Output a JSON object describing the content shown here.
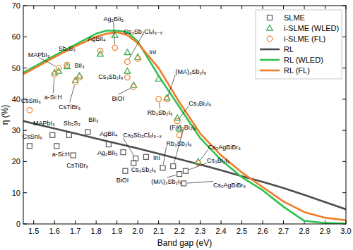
{
  "chart_data": {
    "type": "scatter",
    "x_label": "Band gap (eV)",
    "y_label": "η (%)",
    "xlim": [
      1.45,
      3.0
    ],
    "xticks": [
      1.5,
      1.6,
      1.7,
      1.8,
      1.9,
      {
        "value": 2,
        "label": "2.0"
      },
      2.1,
      2.2,
      2.3,
      2.4,
      2.5,
      2.6,
      2.7,
      2.8,
      2.9,
      {
        "value": 3,
        "label": "3.0"
      }
    ],
    "ylim": [
      0,
      70
    ],
    "yticks": [
      0,
      10,
      20,
      30,
      40,
      50,
      60,
      70
    ],
    "grid": false,
    "legend": "upper right",
    "series": [
      {
        "name": "SLME",
        "type": "scatter",
        "marker": "square",
        "color": "#595959",
        "x": [
          1.48,
          1.59,
          1.61,
          1.67,
          1.69,
          1.76,
          1.86,
          1.93,
          1.99,
          2.04,
          1.98,
          1.94,
          2.12,
          2.17,
          2.2,
          2.23,
          2.22
        ],
        "values": [
          25,
          28.5,
          25,
          28.5,
          22,
          29.5,
          25.5,
          23,
          21,
          21.5,
          19.5,
          17,
          18,
          18.5,
          16,
          17,
          13
        ],
        "labels": [
          "CsSnI₆",
          "MAPbI₃",
          "a-Si:H",
          "Sb₂S₃",
          "CsTiBr₆",
          "BiI₃",
          "AgBiI₄",
          "Ag₂BiI₅",
          "Cs₃Sb₂ClₓI₉₋ₓ",
          "InI",
          "Cs₃Sb₂I₉",
          "BiOI",
          "Rb₃Sb₂I₉",
          "(FA)₃Bi₂I₉",
          "(MA)₃Sb₂I₉",
          "Cs₃Bi₂I₉",
          "Cs₂AgBiBr₆"
        ]
      },
      {
        "name": "i-SLME (WLED)",
        "type": "scatter",
        "marker": "triangle",
        "color": "#2ca84a",
        "x": [
          1.6,
          1.62,
          1.66,
          1.7,
          1.72,
          1.82,
          1.89,
          1.95,
          1.95,
          2.0,
          1.98,
          2.1,
          2.14,
          2.19,
          2.2,
          2.29
        ],
        "values": [
          48.5,
          49,
          50.5,
          46,
          47.5,
          54.5,
          60.5,
          55,
          49,
          53.5,
          44.5,
          46.5,
          40.5,
          34,
          30.5,
          20
        ]
      },
      {
        "name": "i-SLME (FL)",
        "type": "scatter",
        "marker": "circle",
        "color": "#f07c28",
        "x": [
          1.48,
          1.6,
          1.62,
          1.66,
          1.7,
          1.72,
          1.82,
          1.89,
          1.95,
          1.95,
          2.0,
          1.98,
          2.1,
          2.14,
          2.19,
          2.2,
          2.29
        ],
        "values": [
          36.5,
          48,
          50,
          51,
          45.5,
          47,
          55.5,
          56.5,
          52,
          47,
          53,
          44,
          40,
          40,
          33,
          28.5,
          19.5
        ],
        "labels": [
          "CsSnI₆",
          "a-Si:H",
          "MAPbI₃",
          "Sb₂S₃",
          "CsTiBr₆",
          "BiI₃",
          "AgBiI₄",
          "Ag₂BiI₅",
          "Cs₃Sb₂ClₓI₉₋ₓ",
          "Cs₃Sb₂I₉",
          "InI",
          "BiOI",
          "Rb₃Sb₂I₉",
          "(MA)₃Sb₂I₉",
          "Cs₃Bi₂I₉",
          null,
          "Cs₂AgBiBr₆"
        ]
      },
      {
        "name": "RL",
        "type": "line",
        "line_style": "solid",
        "color": "#4d4d4d",
        "x": [
          1.45,
          1.5,
          1.6,
          1.7,
          1.8,
          1.9,
          2.0,
          2.1,
          2.2,
          2.3,
          2.4,
          2.5,
          2.6,
          2.7,
          2.8,
          2.9,
          3.0
        ],
        "values": [
          33,
          32.2,
          30.6,
          29,
          27.4,
          25.8,
          24.2,
          22.5,
          20.8,
          19,
          17.2,
          15.3,
          13.5,
          11.5,
          9.3,
          7,
          4.7
        ]
      },
      {
        "name": "RL (WLED)",
        "type": "line",
        "line_style": "solid",
        "color": "#2ec24f",
        "x": [
          1.45,
          1.5,
          1.6,
          1.7,
          1.8,
          1.85,
          1.9,
          1.95,
          2.0,
          2.1,
          2.2,
          2.3,
          2.4,
          2.5,
          2.6,
          2.7,
          2.8,
          2.9,
          3.0
        ],
        "values": [
          48.5,
          50.3,
          54,
          57.5,
          61,
          62,
          62,
          61.5,
          58.5,
          47.5,
          37.5,
          27.5,
          20.5,
          15,
          10.8,
          5.5,
          1,
          0.3,
          0.1
        ]
      },
      {
        "name": "RL (FL)",
        "type": "line",
        "line_style": "solid",
        "color": "#f27b25",
        "x": [
          1.45,
          1.5,
          1.6,
          1.7,
          1.8,
          1.85,
          1.9,
          1.95,
          2.0,
          2.1,
          2.2,
          2.3,
          2.4,
          2.5,
          2.6,
          2.7,
          2.8,
          2.9,
          3.0
        ],
        "values": [
          48,
          49.8,
          53.5,
          57,
          60,
          61,
          61.5,
          60.5,
          58,
          50,
          39,
          29,
          22,
          16.5,
          11.8,
          7.2,
          3.8,
          2,
          1.2
        ]
      }
    ]
  }
}
